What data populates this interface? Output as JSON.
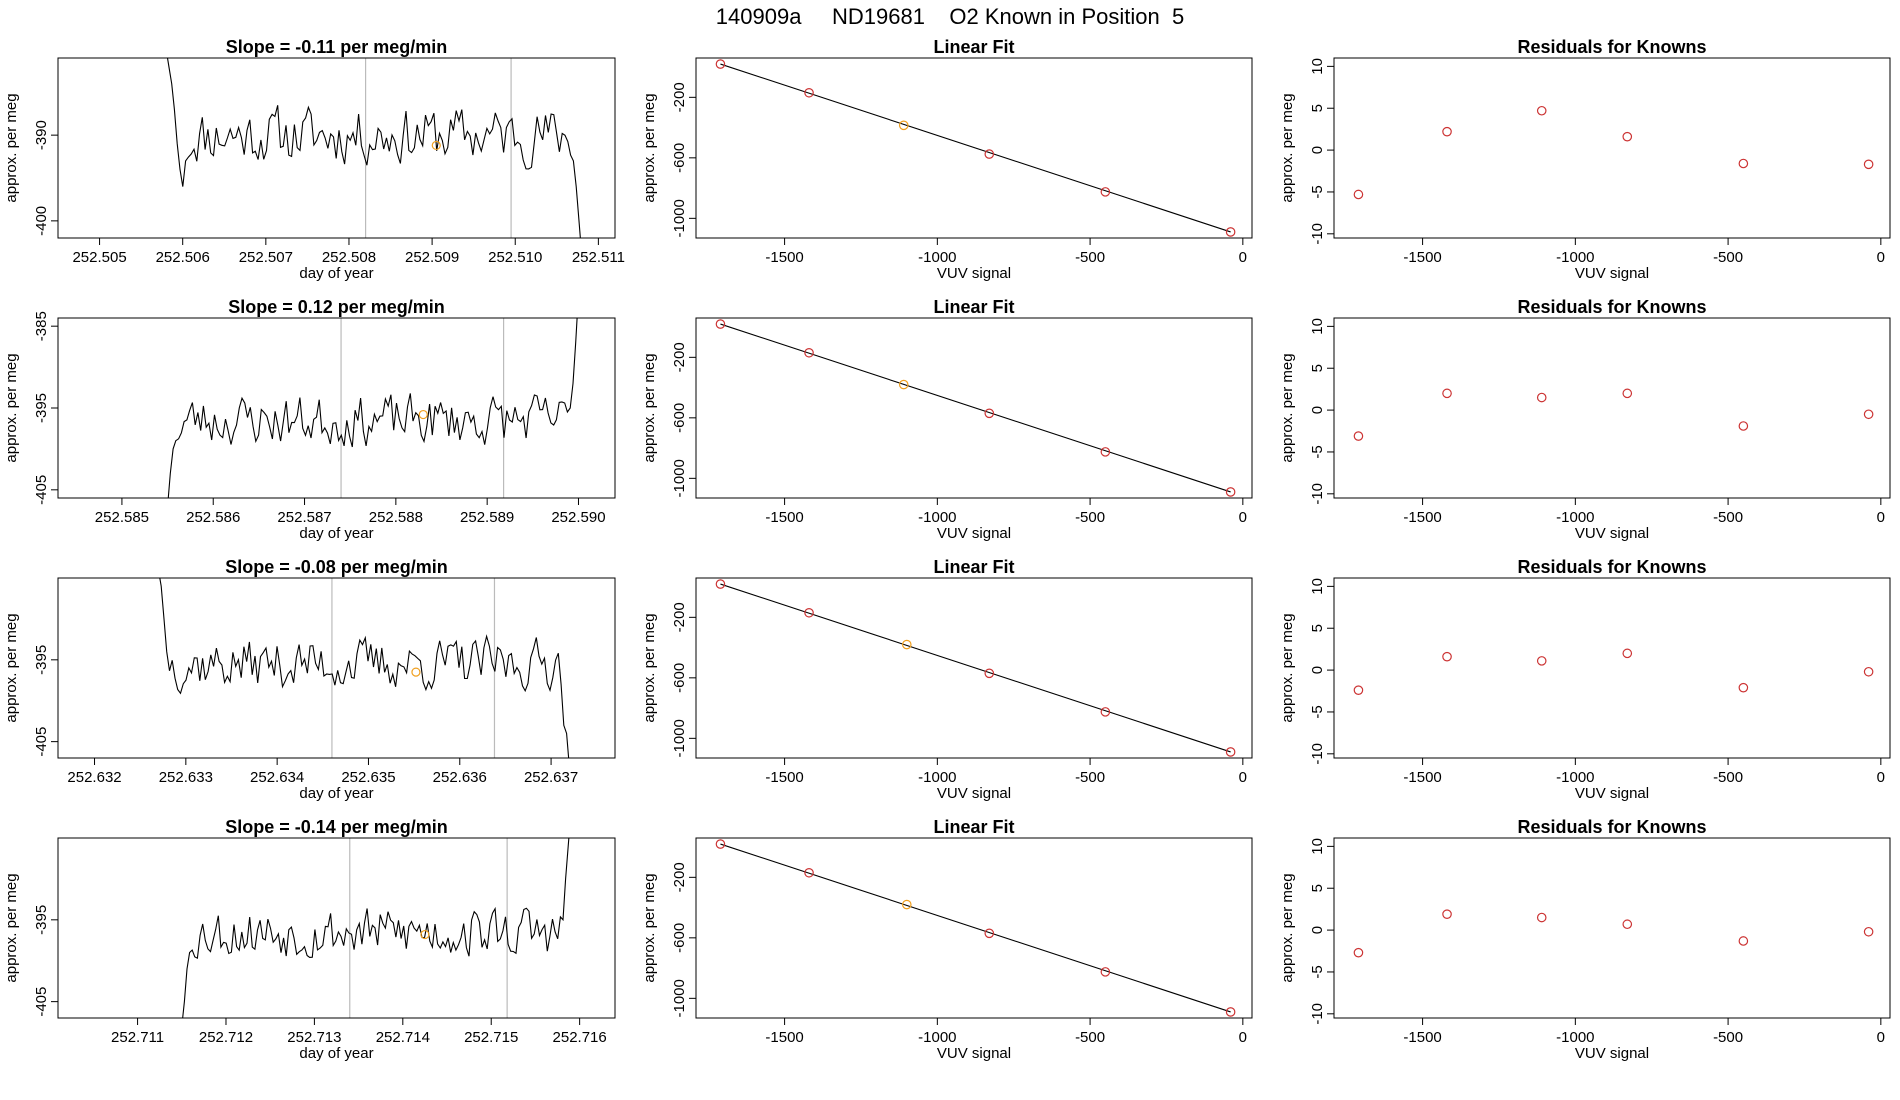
{
  "page_title": "140909a     ND19681    O2 Known in Position  5",
  "colors": {
    "line": "#000000",
    "point_red": "#cc3333",
    "point_orange": "#f0a020",
    "vline": "#bbbbbb",
    "frame": "#000000"
  },
  "chart_data": [
    {
      "type": "line",
      "title": "Slope =  -0.11  per meg/min",
      "xlabel": "day of year",
      "ylabel": "approx. per meg",
      "xlim": [
        252.5045,
        252.5112
      ],
      "ylim": [
        -402,
        -381
      ],
      "xticks": [
        252.505,
        252.506,
        252.507,
        252.508,
        252.509,
        252.51,
        252.511
      ],
      "xtick_labels": [
        "252.505",
        "252.506",
        "252.507",
        "252.508",
        "252.509",
        "252.510",
        "252.511"
      ],
      "yticks": [
        -390,
        -400
      ],
      "ytick_labels": [
        "-390",
        "-400"
      ],
      "vlines": [
        252.5082,
        252.50995
      ],
      "series_start": 252.5058,
      "series_end": 252.5108,
      "series_base": -390,
      "series_amp": 3.2,
      "seed": 11,
      "series_head": [
        -380,
        -382,
        -384,
        -387,
        -391,
        -394,
        -396,
        -393
      ],
      "series_tail": [
        -393,
        -396,
        -400,
        -404
      ],
      "marker": {
        "x": 252.50905,
        "y": -391.2
      },
      "grid": false,
      "legend": "none"
    },
    {
      "type": "scatter",
      "title": "Linear Fit",
      "xlabel": "VUV signal",
      "ylabel": "approx. per meg",
      "xlim": [
        -1790,
        30
      ],
      "ylim": [
        -1130,
        60
      ],
      "xticks": [
        -1500,
        -1000,
        -500,
        0
      ],
      "xtick_labels": [
        "-1500",
        "-1000",
        "-500",
        "0"
      ],
      "yticks": [
        -200,
        -600,
        -1000
      ],
      "ytick_labels": [
        "-200",
        "-600",
        "-1000"
      ],
      "x": [
        -1710,
        -1420,
        -1110,
        -830,
        -450,
        -40
      ],
      "y": [
        20,
        -170,
        -385,
        -575,
        -825,
        -1090
      ],
      "highlight_index": 2,
      "fit": {
        "x": [
          -1710,
          -40
        ],
        "y": [
          20,
          -1090
        ]
      },
      "grid": false,
      "legend": "none"
    },
    {
      "type": "scatter",
      "title": "Residuals for Knowns",
      "xlabel": "VUV signal",
      "ylabel": "approx. per meg",
      "xlim": [
        -1790,
        30
      ],
      "ylim": [
        -10.5,
        11
      ],
      "xticks": [
        -1500,
        -1000,
        -500,
        0
      ],
      "xtick_labels": [
        "-1500",
        "-1000",
        "-500",
        "0"
      ],
      "yticks": [
        10,
        5,
        0,
        -5,
        -10
      ],
      "ytick_labels": [
        "10",
        "5",
        "0",
        "-5",
        "-10"
      ],
      "x": [
        -1710,
        -1420,
        -1110,
        -830,
        -450,
        -40
      ],
      "y": [
        -5.3,
        2.2,
        4.7,
        1.6,
        -1.6,
        -1.7
      ],
      "grid": false,
      "legend": "none"
    },
    {
      "type": "line",
      "title": "Slope =  0.12  per meg/min",
      "xlabel": "day of year",
      "ylabel": "approx. per meg",
      "xlim": [
        252.5843,
        252.5904
      ],
      "ylim": [
        -406,
        -384
      ],
      "xticks": [
        252.585,
        252.586,
        252.587,
        252.588,
        252.589,
        252.59
      ],
      "xtick_labels": [
        "252.585",
        "252.586",
        "252.587",
        "252.588",
        "252.589",
        "252.590"
      ],
      "yticks": [
        -385,
        -395,
        -405
      ],
      "ytick_labels": [
        "-385",
        "-395",
        "-405"
      ],
      "vlines": [
        252.5874,
        252.58918
      ],
      "series_start": 252.5855,
      "series_end": 252.59,
      "series_base": -396.5,
      "series_amp": 3.0,
      "seed": 23,
      "series_head": [
        -407,
        -403,
        -400,
        -399
      ],
      "series_tail": [
        -395,
        -392,
        -387,
        -381
      ],
      "marker": {
        "x": 252.5883,
        "y": -395.8
      },
      "grid": false,
      "legend": "none"
    },
    {
      "type": "scatter",
      "title": "Linear Fit",
      "xlabel": "VUV signal",
      "ylabel": "approx. per meg",
      "xlim": [
        -1790,
        30
      ],
      "ylim": [
        -1130,
        60
      ],
      "xticks": [
        -1500,
        -1000,
        -500,
        0
      ],
      "xtick_labels": [
        "-1500",
        "-1000",
        "-500",
        "0"
      ],
      "yticks": [
        -200,
        -600,
        -1000
      ],
      "ytick_labels": [
        "-200",
        "-600",
        "-1000"
      ],
      "x": [
        -1710,
        -1420,
        -1110,
        -830,
        -450,
        -40
      ],
      "y": [
        20,
        -170,
        -380,
        -570,
        -825,
        -1090
      ],
      "highlight_index": 2,
      "fit": {
        "x": [
          -1710,
          -40
        ],
        "y": [
          20,
          -1090
        ]
      },
      "grid": false,
      "legend": "none"
    },
    {
      "type": "scatter",
      "title": "Residuals for Knowns",
      "xlabel": "VUV signal",
      "ylabel": "approx. per meg",
      "xlim": [
        -1790,
        30
      ],
      "ylim": [
        -10.5,
        11
      ],
      "xticks": [
        -1500,
        -1000,
        -500,
        0
      ],
      "xtick_labels": [
        "-1500",
        "-1000",
        "-500",
        "0"
      ],
      "yticks": [
        10,
        5,
        0,
        -5,
        -10
      ],
      "ytick_labels": [
        "10",
        "5",
        "0",
        "-5",
        "-10"
      ],
      "x": [
        -1710,
        -1420,
        -1110,
        -830,
        -450,
        -40
      ],
      "y": [
        -3.1,
        2.0,
        1.5,
        2.0,
        -1.9,
        -0.5
      ],
      "grid": false,
      "legend": "none"
    },
    {
      "type": "line",
      "title": "Slope =  -0.08  per meg/min",
      "xlabel": "day of year",
      "ylabel": "approx. per meg",
      "xlim": [
        252.6316,
        252.6377
      ],
      "ylim": [
        -407,
        -385
      ],
      "xticks": [
        252.632,
        252.633,
        252.634,
        252.635,
        252.636,
        252.637
      ],
      "xtick_labels": [
        "252.632",
        "252.633",
        "252.634",
        "252.635",
        "252.636",
        "252.637"
      ],
      "yticks": [
        -395,
        -405
      ],
      "ytick_labels": [
        "-395",
        "-405"
      ],
      "vlines": [
        252.6346,
        252.63638
      ],
      "series_start": 252.6327,
      "series_end": 252.6372,
      "series_base": -395.5,
      "series_amp": 3.0,
      "seed": 37,
      "series_head": [
        -384,
        -386,
        -390,
        -394
      ],
      "series_tail": [
        -398,
        -403,
        -404,
        -408
      ],
      "marker": {
        "x": 252.63552,
        "y": -396.5
      },
      "grid": false,
      "legend": "none"
    },
    {
      "type": "scatter",
      "title": "Linear Fit",
      "xlabel": "VUV signal",
      "ylabel": "approx. per meg",
      "xlim": [
        -1790,
        30
      ],
      "ylim": [
        -1130,
        60
      ],
      "xticks": [
        -1500,
        -1000,
        -500,
        0
      ],
      "xtick_labels": [
        "-1500",
        "-1000",
        "-500",
        "0"
      ],
      "yticks": [
        -200,
        -600,
        -1000
      ],
      "ytick_labels": [
        "-200",
        "-600",
        "-1000"
      ],
      "x": [
        -1710,
        -1420,
        -1100,
        -830,
        -450,
        -40
      ],
      "y": [
        20,
        -170,
        -380,
        -570,
        -825,
        -1090
      ],
      "highlight_index": 2,
      "fit": {
        "x": [
          -1710,
          -40
        ],
        "y": [
          20,
          -1090
        ]
      },
      "grid": false,
      "legend": "none"
    },
    {
      "type": "scatter",
      "title": "Residuals for Knowns",
      "xlabel": "VUV signal",
      "ylabel": "approx. per meg",
      "xlim": [
        -1790,
        30
      ],
      "ylim": [
        -10.5,
        11
      ],
      "xticks": [
        -1500,
        -1000,
        -500,
        0
      ],
      "xtick_labels": [
        "-1500",
        "-1000",
        "-500",
        "0"
      ],
      "yticks": [
        10,
        5,
        0,
        -5,
        -10
      ],
      "ytick_labels": [
        "10",
        "5",
        "0",
        "-5",
        "-10"
      ],
      "x": [
        -1710,
        -1420,
        -1110,
        -830,
        -450,
        -40
      ],
      "y": [
        -2.4,
        1.6,
        1.1,
        2.0,
        -2.1,
        -0.2
      ],
      "grid": false,
      "legend": "none"
    },
    {
      "type": "line",
      "title": "Slope =  -0.14  per meg/min",
      "xlabel": "day of year",
      "ylabel": "approx. per meg",
      "xlim": [
        252.7101,
        252.7164
      ],
      "ylim": [
        -407,
        -385
      ],
      "xticks": [
        252.711,
        252.712,
        252.713,
        252.714,
        252.715,
        252.716
      ],
      "xtick_labels": [
        "252.711",
        "252.712",
        "252.713",
        "252.714",
        "252.715",
        "252.716"
      ],
      "yticks": [
        -395,
        -405
      ],
      "ytick_labels": [
        "-395",
        "-405"
      ],
      "vlines": [
        252.7134,
        252.71518
      ],
      "series_start": 252.7115,
      "series_end": 252.7159,
      "series_base": -396.5,
      "series_amp": 3.0,
      "seed": 53,
      "series_head": [
        -408,
        -405,
        -401,
        -399
      ],
      "series_tail": [
        -395,
        -390,
        -386,
        -382
      ],
      "marker": {
        "x": 252.71425,
        "y": -396.8
      },
      "grid": false,
      "legend": "none"
    },
    {
      "type": "scatter",
      "title": "Linear Fit",
      "xlabel": "VUV signal",
      "ylabel": "approx. per meg",
      "xlim": [
        -1790,
        30
      ],
      "ylim": [
        -1130,
        60
      ],
      "xticks": [
        -1500,
        -1000,
        -500,
        0
      ],
      "xtick_labels": [
        "-1500",
        "-1000",
        "-500",
        "0"
      ],
      "yticks": [
        -200,
        -600,
        -1000
      ],
      "ytick_labels": [
        "-200",
        "-600",
        "-1000"
      ],
      "x": [
        -1710,
        -1420,
        -1100,
        -830,
        -450,
        -40
      ],
      "y": [
        20,
        -170,
        -380,
        -570,
        -825,
        -1090
      ],
      "highlight_index": 2,
      "fit": {
        "x": [
          -1710,
          -40
        ],
        "y": [
          20,
          -1090
        ]
      },
      "grid": false,
      "legend": "none"
    },
    {
      "type": "scatter",
      "title": "Residuals for Knowns",
      "xlabel": "VUV signal",
      "ylabel": "approx. per meg",
      "xlim": [
        -1790,
        30
      ],
      "ylim": [
        -10.5,
        11
      ],
      "xticks": [
        -1500,
        -1000,
        -500,
        0
      ],
      "xtick_labels": [
        "-1500",
        "-1000",
        "-500",
        "0"
      ],
      "yticks": [
        10,
        5,
        0,
        -5,
        -10
      ],
      "ytick_labels": [
        "10",
        "5",
        "0",
        "-5",
        "-10"
      ],
      "x": [
        -1710,
        -1420,
        -1110,
        -830,
        -450,
        -40
      ],
      "y": [
        -2.7,
        1.9,
        1.5,
        0.7,
        -1.3,
        -0.2
      ],
      "grid": false,
      "legend": "none"
    }
  ]
}
